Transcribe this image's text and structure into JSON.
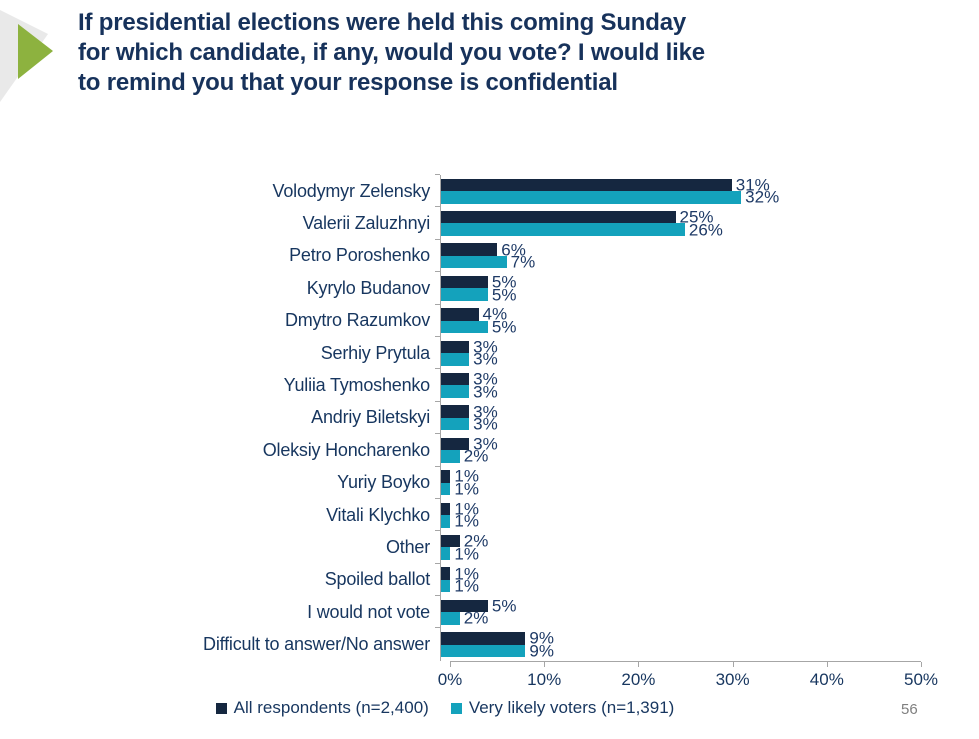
{
  "header": {
    "title": "If presidential elections were held this coming Sunday\nfor which candidate, if any, would you vote? I would like\nto remind you that your response is confidential"
  },
  "colors": {
    "navy_bar": "#152740",
    "teal_bar": "#14A2BC",
    "title_text": "#17325B",
    "label_text": "#17365F",
    "axis_gray": "#A6A6A6",
    "arrow_green": "#8DB23F",
    "arrow_gray": "#E9E9E9",
    "page_number_gray": "#7F7F7F"
  },
  "chart_data": {
    "type": "bar",
    "orientation": "horizontal",
    "title": "",
    "xlabel": "",
    "ylabel": "",
    "xlim": [
      0,
      50
    ],
    "xticks": [
      "0%",
      "10%",
      "20%",
      "30%",
      "40%",
      "50%"
    ],
    "grid": false,
    "legend_position": "bottom",
    "value_suffix": "%",
    "categories": [
      "Volodymyr Zelensky",
      "Valerii Zaluzhnyi",
      "Petro Poroshenko",
      "Kyrylo Budanov",
      "Dmytro Razumkov",
      "Serhiy Prytula",
      "Yuliia Tymoshenko",
      "Andriy Biletskyi",
      "Oleksiy Honcharenko",
      "Yuriy Boyko",
      "Vitali Klychko",
      "Other",
      "Spoiled ballot",
      "I would not vote",
      "Difficult to answer/No answer"
    ],
    "series": [
      {
        "name": "All respondents (n=2,400)",
        "color": "#152740",
        "values": [
          31,
          25,
          6,
          5,
          4,
          3,
          3,
          3,
          3,
          1,
          1,
          2,
          1,
          5,
          9
        ]
      },
      {
        "name": "Very likely voters (n=1,391)",
        "color": "#14A2BC",
        "values": [
          32,
          26,
          7,
          5,
          5,
          3,
          3,
          3,
          2,
          1,
          1,
          1,
          1,
          2,
          9
        ]
      }
    ]
  },
  "page_number": "56"
}
